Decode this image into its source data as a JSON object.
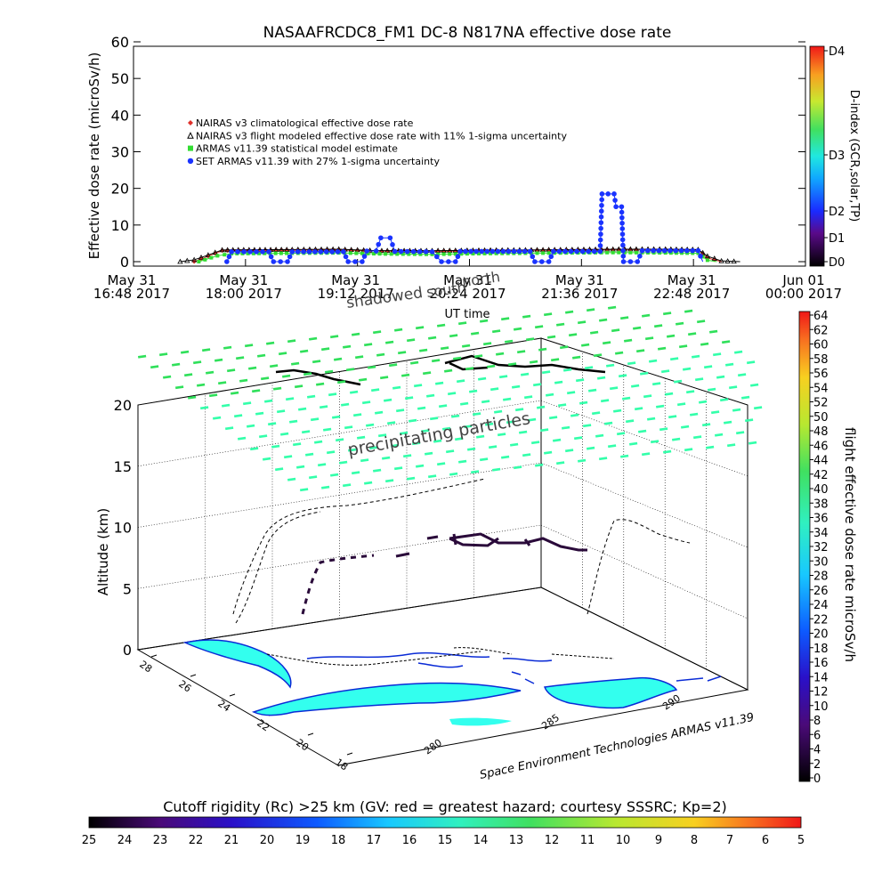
{
  "colors": {
    "nairas_clim": "#e0302a",
    "nairas_flight": "#000000",
    "armas_stat": "#33dd33",
    "set_armas": "#1a33ff",
    "iso_surface": "#33ffaa",
    "iso_surface_light": "#2fe05a",
    "land": "#33ffee",
    "coast": "#0a2bd6",
    "track_dark": "#2a0a3a"
  },
  "chart_data": [
    {
      "type": "line",
      "title": "NASAAFRCDC8_FM1 DC-8   N817NA effective dose rate",
      "xlabel": "UT time",
      "ylabel": "Effective dose rate (microSv/h)",
      "ylim": [
        0,
        60
      ],
      "yticks": [
        "0",
        "10",
        "20",
        "30",
        "40",
        "50",
        "60"
      ],
      "xticks": [
        {
          "l1": "May 31",
          "l2": "16:48 2017"
        },
        {
          "l1": "May 31",
          "l2": "18:00 2017"
        },
        {
          "l1": "May 31",
          "l2": "19:12 2017"
        },
        {
          "l1": "May 31",
          "l2": "20:24 2017"
        },
        {
          "l1": "May 31",
          "l2": "21:36 2017"
        },
        {
          "l1": "May 31",
          "l2": "22:48 2017"
        },
        {
          "l1": "Jun 01",
          "l2": "00:00 2017"
        }
      ],
      "x_hours": [
        16.8,
        18.0,
        19.2,
        20.4,
        21.6,
        22.8,
        24.0
      ],
      "overlay_labels": [
        "shadowed",
        "north",
        "south"
      ],
      "legend_position": "top-left",
      "series": [
        {
          "name": "NAIRAS v3 climatological effective dose rate",
          "color_key": "nairas_clim",
          "marker": "diamond",
          "points": [
            [
              17.45,
              0
            ],
            [
              17.6,
              1.5
            ],
            [
              17.75,
              3
            ],
            [
              18.5,
              3.1
            ],
            [
              19.0,
              3.2
            ],
            [
              19.4,
              2.9
            ],
            [
              20.0,
              2.8
            ],
            [
              20.5,
              3
            ],
            [
              21.0,
              3.1
            ],
            [
              21.5,
              3.2
            ],
            [
              22.0,
              3.3
            ],
            [
              22.5,
              3.3
            ],
            [
              22.85,
              3.2
            ],
            [
              22.95,
              1
            ],
            [
              23.1,
              0
            ]
          ]
        },
        {
          "name": "NAIRAS v3 flight modeled effective dose rate with 11% 1-sigma uncertainty",
          "color_key": "nairas_flight",
          "marker": "triangle",
          "points": [
            [
              17.3,
              0
            ],
            [
              17.45,
              0.5
            ],
            [
              17.6,
              1.8
            ],
            [
              17.75,
              3.2
            ],
            [
              18.5,
              3.3
            ],
            [
              19.0,
              3.4
            ],
            [
              19.4,
              3.0
            ],
            [
              20.0,
              3.0
            ],
            [
              20.5,
              3.1
            ],
            [
              21.0,
              3.2
            ],
            [
              21.5,
              3.3
            ],
            [
              22.0,
              3.4
            ],
            [
              22.5,
              3.4
            ],
            [
              22.85,
              3.3
            ],
            [
              22.95,
              1.5
            ],
            [
              23.1,
              0.2
            ],
            [
              23.3,
              0
            ]
          ]
        },
        {
          "name": "ARMAS v11.39 statistical model estimate",
          "color_key": "armas_stat",
          "marker": "square",
          "points": [
            [
              17.5,
              0
            ],
            [
              17.7,
              1.6
            ],
            [
              17.85,
              2.2
            ],
            [
              18.5,
              2.3
            ],
            [
              19.0,
              2.4
            ],
            [
              19.5,
              2.1
            ],
            [
              20.0,
              2.0
            ],
            [
              20.5,
              2.2
            ],
            [
              21.0,
              2.3
            ],
            [
              21.5,
              2.4
            ],
            [
              22.0,
              2.5
            ],
            [
              22.5,
              2.4
            ],
            [
              22.85,
              2.3
            ],
            [
              22.95,
              0.4
            ],
            [
              23.05,
              0
            ]
          ]
        },
        {
          "name": "SET ARMAS v11.39 with 27% 1-sigma uncertainty",
          "color_key": "set_armas",
          "marker": "circle",
          "points": [
            [
              17.8,
              0
            ],
            [
              17.85,
              2.7
            ],
            [
              18.25,
              2.7
            ],
            [
              18.3,
              0
            ],
            [
              18.45,
              0
            ],
            [
              18.5,
              2.7
            ],
            [
              19.05,
              2.7
            ],
            [
              19.1,
              0
            ],
            [
              19.25,
              0
            ],
            [
              19.3,
              2.9
            ],
            [
              19.4,
              2.9
            ],
            [
              19.45,
              6.5
            ],
            [
              19.55,
              6.5
            ],
            [
              19.6,
              2.8
            ],
            [
              20.0,
              2.7
            ],
            [
              20.1,
              0
            ],
            [
              20.25,
              0
            ],
            [
              20.3,
              2.8
            ],
            [
              21.05,
              2.8
            ],
            [
              21.1,
              0
            ],
            [
              21.25,
              0
            ],
            [
              21.3,
              2.8
            ],
            [
              21.8,
              2.8
            ],
            [
              21.82,
              18.5
            ],
            [
              21.95,
              18.5
            ],
            [
              21.97,
              15
            ],
            [
              22.03,
              15
            ],
            [
              22.05,
              0
            ],
            [
              22.2,
              0
            ],
            [
              22.25,
              3
            ],
            [
              22.85,
              3
            ],
            [
              22.9,
              0
            ]
          ]
        }
      ]
    },
    {
      "type": "surface3d",
      "annotation": "precipitating particles",
      "zlabel": "Altitude (km)",
      "zticks": [
        "0",
        "5",
        "10",
        "15",
        "20"
      ],
      "lat_ticks": [
        "28",
        "26",
        "24",
        "22",
        "20",
        "18"
      ],
      "lon_ticks": [
        "280",
        "285",
        "290"
      ],
      "credit": "Space Environment Technologies ARMAS v11.39"
    },
    {
      "type": "colorbar",
      "label": "flight effective dose rate microSv/h",
      "ticks": [
        "0",
        "2",
        "4",
        "6",
        "8",
        "10",
        "12",
        "14",
        "16",
        "18",
        "20",
        "22",
        "24",
        "26",
        "28",
        "30",
        "32",
        "34",
        "36",
        "38",
        "40",
        "42",
        "44",
        "46",
        "48",
        "50",
        "52",
        "54",
        "56",
        "58",
        "60",
        "62",
        "64"
      ],
      "range": [
        0,
        64
      ]
    },
    {
      "type": "colorbar",
      "label": "D-index (GCR,solar,TP)",
      "ticks": [
        "D0",
        "D1",
        "D2",
        "D3",
        "D4"
      ]
    },
    {
      "type": "colorbar",
      "label": "Cutoff rigidity (Rc) >25 km (GV: red = greatest hazard; courtesy SSSRC; Kp=2)",
      "ticks": [
        "25",
        "24",
        "23",
        "22",
        "21",
        "20",
        "19",
        "18",
        "17",
        "16",
        "15",
        "14",
        "13",
        "12",
        "11",
        "10",
        "9",
        "8",
        "7",
        "6",
        "5"
      ]
    }
  ]
}
